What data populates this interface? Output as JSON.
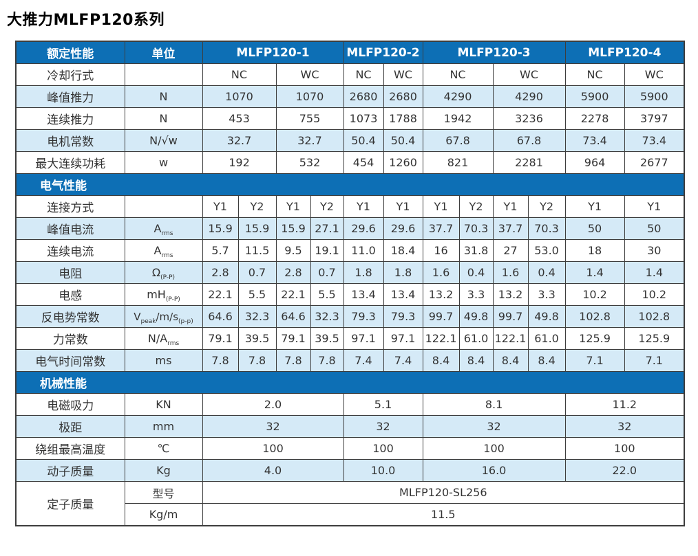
{
  "title": "大推力MLFP120系列",
  "colors": {
    "header_blue": "#0d6fb5",
    "row_light_blue": "#d5eaf7",
    "border_gray": "#3d3d3d"
  },
  "table": {
    "header": {
      "rated_perf": "额定性能",
      "unit": "单位",
      "models": [
        "MLFP120-1",
        "MLFP120-2",
        "MLFP120-3",
        "MLFP120-4"
      ]
    },
    "cooling": {
      "label": "冷却行式",
      "unit": "",
      "values": [
        "NC",
        "WC",
        "NC",
        "WC",
        "NC",
        "WC",
        "NC",
        "WC"
      ]
    },
    "rated_rows": [
      {
        "label": "峰值推力",
        "unit": "N",
        "values": [
          "1070",
          "1070",
          "2680",
          "2680",
          "4290",
          "4290",
          "5900",
          "5900"
        ]
      },
      {
        "label": "连续推力",
        "unit": "N",
        "values": [
          "453",
          "755",
          "1073",
          "1788",
          "1942",
          "3236",
          "2278",
          "3797"
        ]
      },
      {
        "label": "电机常数",
        "unit": "N/√w",
        "values": [
          "32.7",
          "32.7",
          "50.4",
          "50.4",
          "67.8",
          "67.8",
          "73.4",
          "73.4"
        ]
      },
      {
        "label": "最大连续功耗",
        "unit": "w",
        "values": [
          "192",
          "532",
          "454",
          "1260",
          "821",
          "2281",
          "964",
          "2677"
        ]
      }
    ],
    "sections": {
      "electrical": "电气性能",
      "mechanical": "机械性能"
    },
    "connection": {
      "label": "连接方式",
      "unit": "",
      "values": [
        "Y1",
        "Y2",
        "Y1",
        "Y2",
        "Y1",
        "Y1",
        "Y1",
        "Y2",
        "Y1",
        "Y2",
        "Y1",
        "Y1"
      ]
    },
    "electrical_rows": [
      {
        "label": "峰值电流",
        "unit_parts": [
          [
            "t",
            "A"
          ],
          [
            "s",
            "rms"
          ]
        ],
        "values": [
          "15.9",
          "15.9",
          "15.9",
          "27.1",
          "29.6",
          "29.6",
          "37.7",
          "70.3",
          "37.7",
          "70.3",
          "50",
          "50"
        ]
      },
      {
        "label": "连续电流",
        "unit_parts": [
          [
            "t",
            "A"
          ],
          [
            "s",
            "rms"
          ]
        ],
        "values": [
          "5.7",
          "11.5",
          "9.5",
          "19.1",
          "11.0",
          "18.4",
          "16",
          "31.8",
          "27",
          "53.0",
          "18",
          "30"
        ]
      },
      {
        "label": "电阻",
        "unit_parts": [
          [
            "t",
            "Ω"
          ],
          [
            "s",
            "(P-P)"
          ]
        ],
        "values": [
          "2.8",
          "0.7",
          "2.8",
          "0.7",
          "1.8",
          "1.8",
          "1.6",
          "0.4",
          "1.6",
          "0.4",
          "1.4",
          "1.4"
        ]
      },
      {
        "label": "电感",
        "unit_parts": [
          [
            "t",
            "mH"
          ],
          [
            "s",
            "(P-P)"
          ]
        ],
        "values": [
          "22.1",
          "5.5",
          "22.1",
          "5.5",
          "13.4",
          "13.4",
          "13.2",
          "3.3",
          "13.2",
          "3.3",
          "10.2",
          "10.2"
        ]
      },
      {
        "label": "反电势常数",
        "unit_parts": [
          [
            "t",
            "V"
          ],
          [
            "s",
            "peak"
          ],
          [
            "t",
            "/m/s"
          ],
          [
            "s",
            "(p-p)"
          ]
        ],
        "values": [
          "64.6",
          "32.3",
          "64.6",
          "32.3",
          "79.3",
          "79.3",
          "99.7",
          "49.8",
          "99.7",
          "49.8",
          "102.8",
          "102.8"
        ]
      },
      {
        "label": "力常数",
        "unit_parts": [
          [
            "t",
            "N/A"
          ],
          [
            "s",
            "rms"
          ]
        ],
        "values": [
          "79.1",
          "39.5",
          "79.1",
          "39.5",
          "97.1",
          "97.1",
          "122.1",
          "61.0",
          "122.1",
          "61.0",
          "125.9",
          "125.9"
        ]
      },
      {
        "label": "电气时间常数",
        "unit_parts": [
          [
            "t",
            "ms"
          ]
        ],
        "values": [
          "7.8",
          "7.8",
          "7.8",
          "7.8",
          "7.4",
          "7.4",
          "8.4",
          "8.4",
          "8.4",
          "8.4",
          "7.1",
          "7.1"
        ]
      }
    ],
    "mechanical_rows": [
      {
        "label": "电磁吸力",
        "unit": "KN",
        "values": [
          "2.0",
          "5.1",
          "8.1",
          "11.2"
        ]
      },
      {
        "label": "极距",
        "unit": "mm",
        "values": [
          "32",
          "32",
          "32",
          "32"
        ]
      },
      {
        "label": "绕组最高温度",
        "unit": "℃",
        "values": [
          "100",
          "100",
          "100",
          "100"
        ]
      },
      {
        "label": "动子质量",
        "unit": "Kg",
        "values": [
          "4.0",
          "10.0",
          "16.0",
          "22.0"
        ]
      }
    ],
    "stator": {
      "label": "定子质量",
      "rows": [
        {
          "unit": "型号",
          "value": "MLFP120-SL256"
        },
        {
          "unit": "Kg/m",
          "value": "11.5"
        }
      ]
    }
  }
}
